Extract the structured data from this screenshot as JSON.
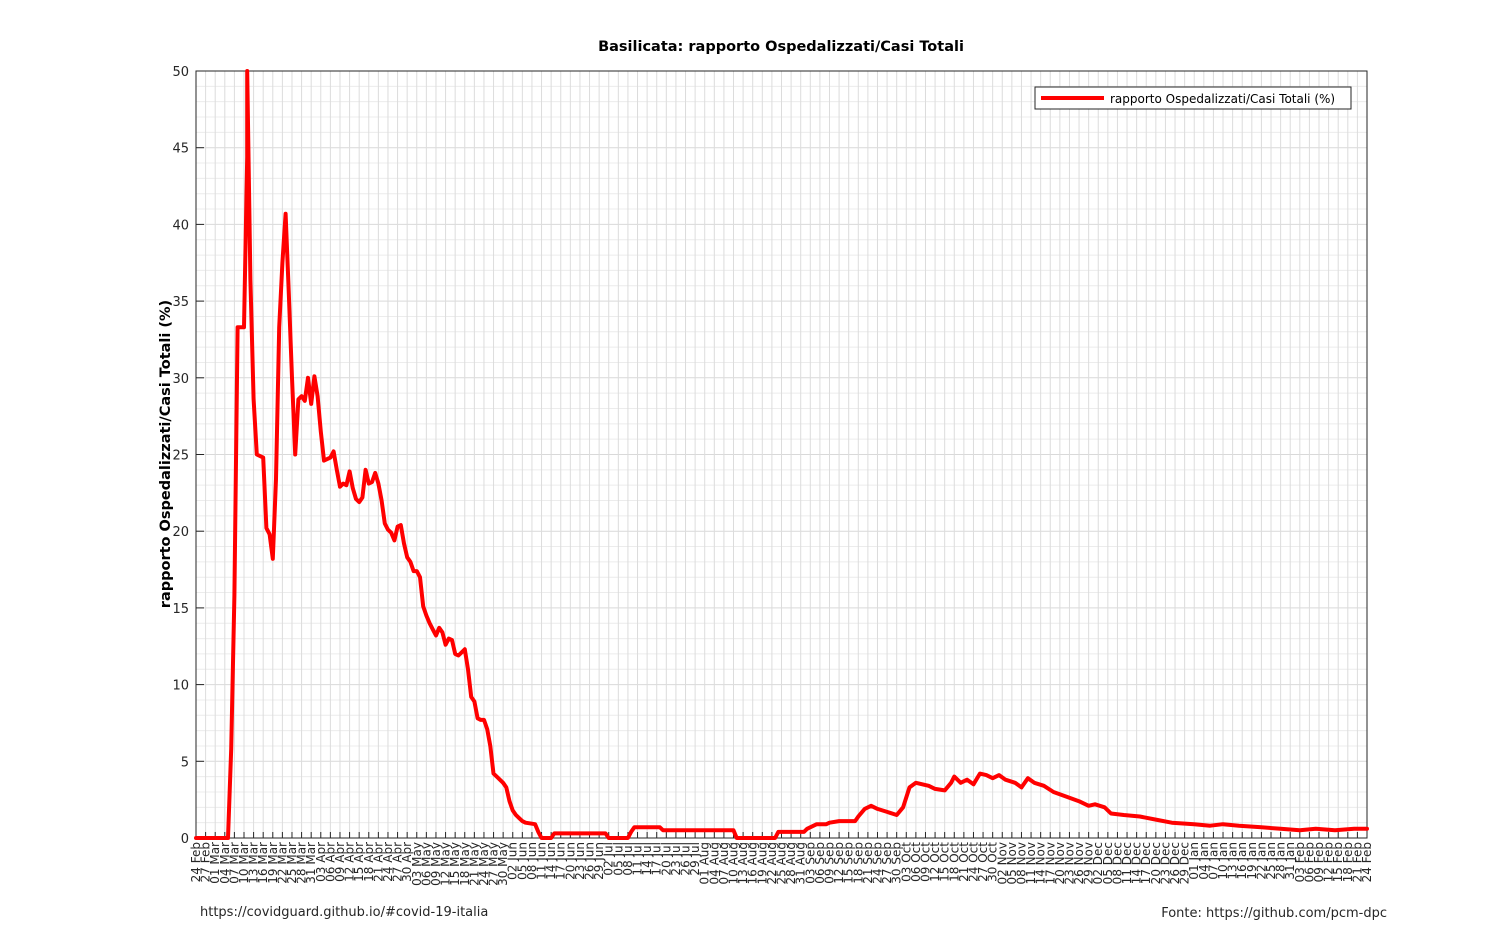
{
  "footer": {
    "left": "https://covidguard.github.io/#covid-19-italia",
    "right": "Fonte: https://github.com/pcm-dpc"
  },
  "chart_data": {
    "type": "line",
    "title": "Basilicata: rapporto Ospedalizzati/Casi Totali",
    "ylabel": "rapporto Ospedalizzati/Casi Totali (%)",
    "xlabel": "",
    "ylim": [
      0,
      50
    ],
    "yticks": [
      0,
      5,
      10,
      15,
      20,
      25,
      30,
      35,
      40,
      45,
      50
    ],
    "xlim": [
      "2020-02-24",
      "2021-02-24"
    ],
    "grid": true,
    "legend_position": "top-right",
    "series": [
      {
        "name": "rapporto Ospedalizzati/Casi Totali (%)",
        "color": "#ff0000",
        "points": [
          [
            "2020-02-24",
            0
          ],
          [
            "2020-03-05",
            0
          ],
          [
            "2020-03-06",
            5.8
          ],
          [
            "2020-03-07",
            15.8
          ],
          [
            "2020-03-08",
            33.3
          ],
          [
            "2020-03-10",
            33.3
          ],
          [
            "2020-03-11",
            44.4
          ],
          [
            "2020-03-11",
            50
          ],
          [
            "2020-03-12",
            36.4
          ],
          [
            "2020-03-13",
            28.6
          ],
          [
            "2020-03-14",
            25.0
          ],
          [
            "2020-03-16",
            24.8
          ],
          [
            "2020-03-17",
            20.2
          ],
          [
            "2020-03-18",
            19.8
          ],
          [
            "2020-03-19",
            18.2
          ],
          [
            "2020-03-20",
            23.4
          ],
          [
            "2020-03-21",
            33.3
          ],
          [
            "2020-03-22",
            37.5
          ],
          [
            "2020-03-23",
            40.7
          ],
          [
            "2020-03-24",
            35.5
          ],
          [
            "2020-03-25",
            30.0
          ],
          [
            "2020-03-26",
            25.0
          ],
          [
            "2020-03-27",
            28.6
          ],
          [
            "2020-03-28",
            28.8
          ],
          [
            "2020-03-29",
            28.5
          ],
          [
            "2020-03-30",
            30.0
          ],
          [
            "2020-03-31",
            28.3
          ],
          [
            "2020-04-01",
            30.1
          ],
          [
            "2020-04-02",
            28.8
          ],
          [
            "2020-04-03",
            26.5
          ],
          [
            "2020-04-04",
            24.6
          ],
          [
            "2020-04-06",
            24.8
          ],
          [
            "2020-04-07",
            25.2
          ],
          [
            "2020-04-08",
            24.0
          ],
          [
            "2020-04-09",
            22.9
          ],
          [
            "2020-04-10",
            23.1
          ],
          [
            "2020-04-11",
            23.0
          ],
          [
            "2020-04-12",
            23.9
          ],
          [
            "2020-04-13",
            22.8
          ],
          [
            "2020-04-14",
            22.1
          ],
          [
            "2020-04-15",
            21.9
          ],
          [
            "2020-04-16",
            22.2
          ],
          [
            "2020-04-17",
            24.0
          ],
          [
            "2020-04-18",
            23.1
          ],
          [
            "2020-04-19",
            23.2
          ],
          [
            "2020-04-20",
            23.8
          ],
          [
            "2020-04-21",
            23.1
          ],
          [
            "2020-04-22",
            22.0
          ],
          [
            "2020-04-23",
            20.5
          ],
          [
            "2020-04-24",
            20.1
          ],
          [
            "2020-04-25",
            19.9
          ],
          [
            "2020-04-26",
            19.4
          ],
          [
            "2020-04-27",
            20.3
          ],
          [
            "2020-04-28",
            20.4
          ],
          [
            "2020-04-29",
            19.2
          ],
          [
            "2020-04-30",
            18.3
          ],
          [
            "2020-05-01",
            18.0
          ],
          [
            "2020-05-02",
            17.4
          ],
          [
            "2020-05-03",
            17.4
          ],
          [
            "2020-05-04",
            17.0
          ],
          [
            "2020-05-05",
            15.1
          ],
          [
            "2020-05-06",
            14.5
          ],
          [
            "2020-05-07",
            14.0
          ],
          [
            "2020-05-08",
            13.6
          ],
          [
            "2020-05-09",
            13.2
          ],
          [
            "2020-05-10",
            13.7
          ],
          [
            "2020-05-11",
            13.4
          ],
          [
            "2020-05-12",
            12.6
          ],
          [
            "2020-05-13",
            13.0
          ],
          [
            "2020-05-14",
            12.9
          ],
          [
            "2020-05-15",
            12.0
          ],
          [
            "2020-05-16",
            11.9
          ],
          [
            "2020-05-17",
            12.1
          ],
          [
            "2020-05-18",
            12.3
          ],
          [
            "2020-05-19",
            11.0
          ],
          [
            "2020-05-20",
            9.2
          ],
          [
            "2020-05-21",
            8.9
          ],
          [
            "2020-05-22",
            7.8
          ],
          [
            "2020-05-23",
            7.7
          ],
          [
            "2020-05-24",
            7.7
          ],
          [
            "2020-05-25",
            7.1
          ],
          [
            "2020-05-26",
            6.0
          ],
          [
            "2020-05-27",
            4.2
          ],
          [
            "2020-05-28",
            4.0
          ],
          [
            "2020-05-29",
            3.8
          ],
          [
            "2020-05-30",
            3.6
          ],
          [
            "2020-05-31",
            3.3
          ],
          [
            "2020-06-01",
            2.4
          ],
          [
            "2020-06-02",
            1.8
          ],
          [
            "2020-06-03",
            1.5
          ],
          [
            "2020-06-04",
            1.3
          ],
          [
            "2020-06-05",
            1.1
          ],
          [
            "2020-06-06",
            1.0
          ],
          [
            "2020-06-09",
            0.9
          ],
          [
            "2020-06-10",
            0.4
          ],
          [
            "2020-06-11",
            0
          ],
          [
            "2020-06-14",
            0
          ],
          [
            "2020-06-15",
            0.3
          ],
          [
            "2020-07-01",
            0.3
          ],
          [
            "2020-07-02",
            0
          ],
          [
            "2020-07-08",
            0
          ],
          [
            "2020-07-09",
            0.4
          ],
          [
            "2020-07-10",
            0.7
          ],
          [
            "2020-07-18",
            0.7
          ],
          [
            "2020-07-19",
            0.5
          ],
          [
            "2020-08-10",
            0.5
          ],
          [
            "2020-08-11",
            0
          ],
          [
            "2020-08-23",
            0
          ],
          [
            "2020-08-24",
            0.4
          ],
          [
            "2020-09-01",
            0.4
          ],
          [
            "2020-09-02",
            0.6
          ],
          [
            "2020-09-05",
            0.9
          ],
          [
            "2020-09-08",
            0.9
          ],
          [
            "2020-09-09",
            1.0
          ],
          [
            "2020-09-12",
            1.1
          ],
          [
            "2020-09-17",
            1.1
          ],
          [
            "2020-09-18",
            1.4
          ],
          [
            "2020-09-20",
            1.9
          ],
          [
            "2020-09-22",
            2.1
          ],
          [
            "2020-09-24",
            1.9
          ],
          [
            "2020-09-27",
            1.7
          ],
          [
            "2020-09-30",
            1.5
          ],
          [
            "2020-10-02",
            2.0
          ],
          [
            "2020-10-04",
            3.3
          ],
          [
            "2020-10-06",
            3.6
          ],
          [
            "2020-10-10",
            3.4
          ],
          [
            "2020-10-12",
            3.2
          ],
          [
            "2020-10-15",
            3.1
          ],
          [
            "2020-10-17",
            3.6
          ],
          [
            "2020-10-18",
            4.0
          ],
          [
            "2020-10-20",
            3.6
          ],
          [
            "2020-10-22",
            3.8
          ],
          [
            "2020-10-24",
            3.5
          ],
          [
            "2020-10-26",
            4.2
          ],
          [
            "2020-10-28",
            4.1
          ],
          [
            "2020-10-30",
            3.9
          ],
          [
            "2020-11-01",
            4.1
          ],
          [
            "2020-11-03",
            3.8
          ],
          [
            "2020-11-06",
            3.6
          ],
          [
            "2020-11-08",
            3.3
          ],
          [
            "2020-11-10",
            3.9
          ],
          [
            "2020-11-12",
            3.6
          ],
          [
            "2020-11-15",
            3.4
          ],
          [
            "2020-11-18",
            3.0
          ],
          [
            "2020-11-22",
            2.7
          ],
          [
            "2020-11-26",
            2.4
          ],
          [
            "2020-11-29",
            2.1
          ],
          [
            "2020-12-01",
            2.2
          ],
          [
            "2020-12-04",
            2.0
          ],
          [
            "2020-12-06",
            1.6
          ],
          [
            "2020-12-10",
            1.5
          ],
          [
            "2020-12-15",
            1.4
          ],
          [
            "2020-12-20",
            1.2
          ],
          [
            "2020-12-25",
            1.0
          ],
          [
            "2021-01-01",
            0.9
          ],
          [
            "2021-01-06",
            0.8
          ],
          [
            "2021-01-10",
            0.9
          ],
          [
            "2021-01-15",
            0.8
          ],
          [
            "2021-01-22",
            0.7
          ],
          [
            "2021-01-28",
            0.6
          ],
          [
            "2021-02-03",
            0.5
          ],
          [
            "2021-02-08",
            0.6
          ],
          [
            "2021-02-14",
            0.5
          ],
          [
            "2021-02-20",
            0.6
          ],
          [
            "2021-02-24",
            0.6
          ]
        ]
      }
    ]
  }
}
